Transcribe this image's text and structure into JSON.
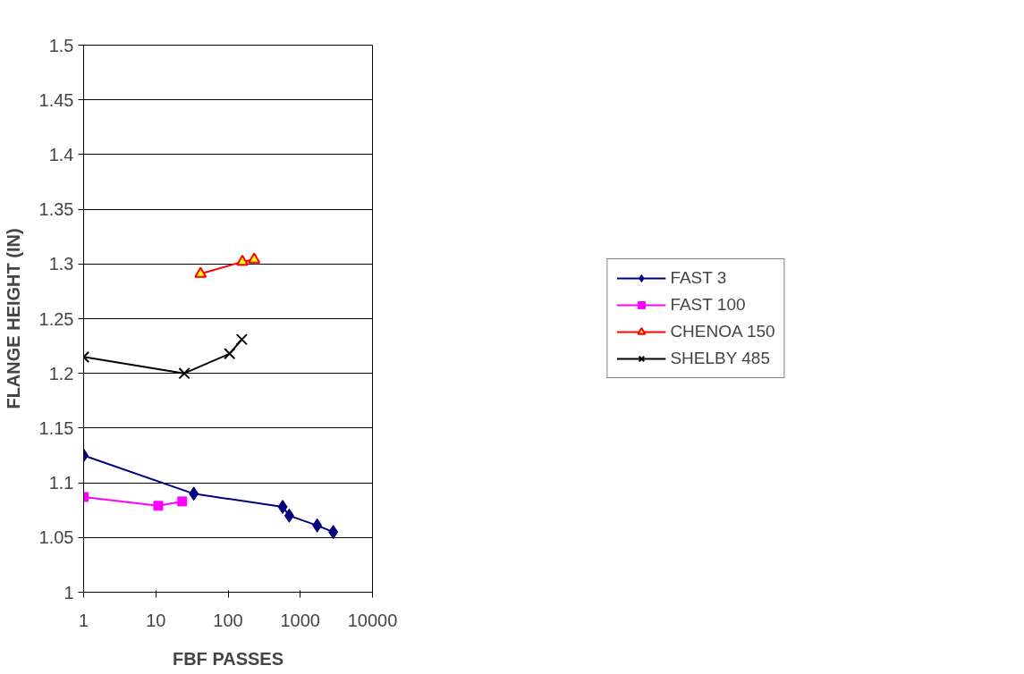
{
  "chart_data": {
    "type": "line",
    "xlabel": "FBF PASSES",
    "ylabel": "FLANGE HEIGHT (IN)",
    "log": "x",
    "xlim": [
      1,
      10000
    ],
    "xticks": [
      1,
      10,
      100,
      1000,
      10000
    ],
    "ylim": [
      1,
      1.5
    ],
    "yticks": [
      1,
      1.05,
      1.1,
      1.15,
      1.2,
      1.25,
      1.3,
      1.35,
      1.4,
      1.45,
      1.5
    ],
    "grid": "y",
    "legend": "right",
    "series": [
      {
        "name": "FAST 3",
        "color": "#000080",
        "marker": "diamond",
        "x": [
          1,
          33.5,
          571,
          703,
          1714,
          2863
        ],
        "values": [
          1.125,
          1.09,
          1.078,
          1.07,
          1.061,
          1.055
        ]
      },
      {
        "name": "FAST 100",
        "color": "#ff00ff",
        "marker": "square",
        "x": [
          1,
          10.8,
          23.2
        ],
        "values": [
          1.087,
          1.079,
          1.083
        ]
      },
      {
        "name": "CHENOA 150",
        "color": "#ff0000",
        "marker": "triangle",
        "x": [
          41.6,
          158,
          230
        ],
        "values": [
          1.291,
          1.302,
          1.304
        ]
      },
      {
        "name": "SHELBY 485",
        "color": "#000000",
        "marker": "cross",
        "x": [
          1,
          24.8,
          105,
          155
        ],
        "values": [
          1.215,
          1.2,
          1.218,
          1.231
        ]
      }
    ]
  }
}
